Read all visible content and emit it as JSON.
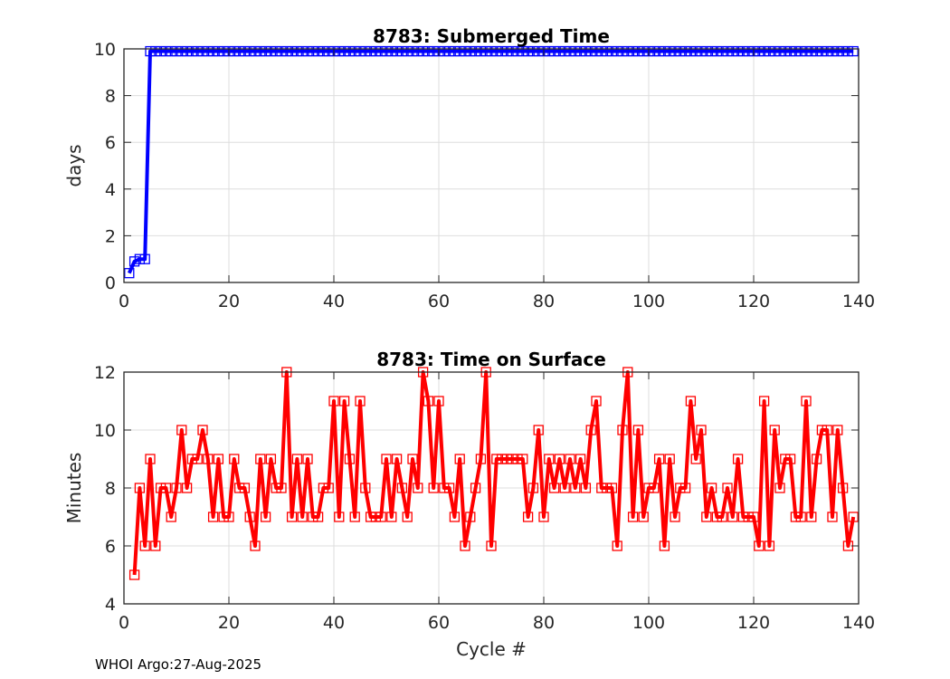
{
  "chart_data": [
    {
      "type": "line",
      "title": "8783: Submerged Time",
      "xlabel": "",
      "ylabel": "days",
      "xlim": [
        0,
        140
      ],
      "ylim": [
        0,
        10
      ],
      "xticks": [
        0,
        20,
        40,
        60,
        80,
        100,
        120,
        140
      ],
      "yticks": [
        0,
        2,
        4,
        6,
        8,
        10
      ],
      "grid": true,
      "color": "#0000ff",
      "marker": "square",
      "x_start": 1,
      "values": [
        0.4,
        0.9,
        1.0,
        1.0,
        9.9,
        9.9,
        9.9,
        9.9,
        9.9,
        9.9,
        9.9,
        9.9,
        9.9,
        9.9,
        9.9,
        9.9,
        9.9,
        9.9,
        9.9,
        9.9,
        9.9,
        9.9,
        9.9,
        9.9,
        9.9,
        9.9,
        9.9,
        9.9,
        9.9,
        9.9,
        9.9,
        9.9,
        9.9,
        9.9,
        9.9,
        9.9,
        9.9,
        9.9,
        9.9,
        9.9,
        9.9,
        9.9,
        9.9,
        9.9,
        9.9,
        9.9,
        9.9,
        9.9,
        9.9,
        9.9,
        9.9,
        9.9,
        9.9,
        9.9,
        9.9,
        9.9,
        9.9,
        9.9,
        9.9,
        9.9,
        9.9,
        9.9,
        9.9,
        9.9,
        9.9,
        9.9,
        9.9,
        9.9,
        9.9,
        9.9,
        9.9,
        9.9,
        9.9,
        9.9,
        9.9,
        9.9,
        9.9,
        9.9,
        9.9,
        9.9,
        9.9,
        9.9,
        9.9,
        9.9,
        9.9,
        9.9,
        9.9,
        9.9,
        9.9,
        9.9,
        9.9,
        9.9,
        9.9,
        9.9,
        9.9,
        9.9,
        9.9,
        9.9,
        9.9,
        9.9,
        9.9,
        9.9,
        9.9,
        9.9,
        9.9,
        9.9,
        9.9,
        9.9,
        9.9,
        9.9,
        9.9,
        9.9,
        9.9,
        9.9,
        9.9,
        9.9,
        9.9,
        9.9,
        9.9,
        9.9,
        9.9,
        9.9,
        9.9,
        9.9,
        9.9,
        9.9,
        9.9,
        9.9,
        9.9,
        9.9,
        9.9,
        9.9,
        9.9,
        9.9,
        9.9,
        9.9,
        9.9,
        9.9,
        9.9
      ]
    },
    {
      "type": "line",
      "title": "8783: Time on Surface",
      "xlabel": "Cycle #",
      "ylabel": "Minutes",
      "xlim": [
        0,
        140
      ],
      "ylim": [
        4,
        12
      ],
      "xticks": [
        0,
        20,
        40,
        60,
        80,
        100,
        120,
        140
      ],
      "yticks": [
        4,
        6,
        8,
        10,
        12
      ],
      "grid": true,
      "color": "#ff0000",
      "marker": "square",
      "x_start": 2,
      "values": [
        5,
        8,
        6,
        9,
        6,
        8,
        8,
        7,
        8,
        10,
        8,
        9,
        9,
        10,
        9,
        7,
        9,
        7,
        7,
        9,
        8,
        8,
        7,
        6,
        9,
        7,
        9,
        8,
        8,
        12,
        7,
        9,
        7,
        9,
        7,
        7,
        8,
        8,
        11,
        7,
        11,
        9,
        7,
        11,
        8,
        7,
        7,
        7,
        9,
        7,
        9,
        8,
        7,
        9,
        8,
        12,
        11,
        8,
        11,
        8,
        8,
        7,
        9,
        6,
        7,
        8,
        9,
        12,
        6,
        9,
        9,
        9,
        9,
        9,
        9,
        7,
        8,
        10,
        7,
        9,
        8,
        9,
        8,
        9,
        8,
        9,
        8,
        10,
        11,
        8,
        8,
        8,
        6,
        10,
        12,
        7,
        10,
        7,
        8,
        8,
        9,
        6,
        9,
        7,
        8,
        8,
        11,
        9,
        10,
        7,
        8,
        7,
        7,
        8,
        7,
        9,
        7,
        7,
        7,
        6,
        11,
        6,
        10,
        8,
        9,
        9,
        7,
        7,
        11,
        7,
        9,
        10,
        10,
        7,
        10,
        8,
        6,
        7
      ]
    }
  ],
  "footer": "WHOI Argo:27-Aug-2025"
}
